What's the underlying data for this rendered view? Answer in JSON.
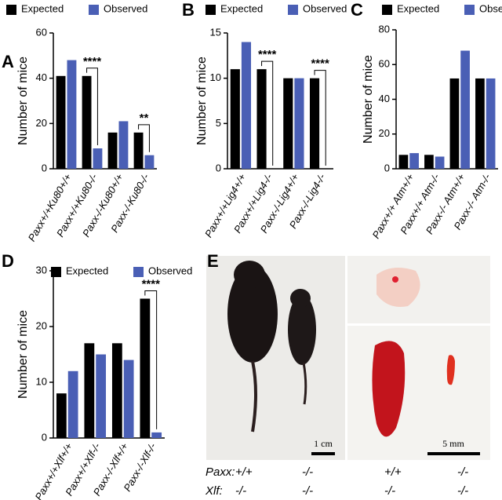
{
  "chart_data": [
    {
      "type": "bar",
      "panel": "A",
      "ylabel": "Number of mice",
      "categories": [
        "Paxx+/+Ku80+/+",
        "Paxx+/+Ku80-/-",
        "Paxx-/-Ku80+/+",
        "Paxx-/-Ku80-/-"
      ],
      "series": [
        {
          "name": "Expected",
          "color": "#000000",
          "values": [
            41,
            41,
            16,
            16
          ]
        },
        {
          "name": "Observed",
          "color": "#4a5fb5",
          "values": [
            48,
            9,
            21,
            6
          ]
        }
      ],
      "annotations": [
        null,
        "****",
        null,
        "**"
      ],
      "ylim": [
        0,
        60
      ],
      "yticks": [
        0,
        20,
        40,
        60
      ]
    },
    {
      "type": "bar",
      "panel": "B",
      "ylabel": "Number of mice",
      "categories": [
        "Paxx+/+Lig4+/+",
        "Paxx+/+Lig4-/-",
        "Paxx-/-Lig4+/+",
        "Paxx-/-Lig4-/-"
      ],
      "series": [
        {
          "name": "Expected",
          "color": "#000000",
          "values": [
            11,
            11,
            10,
            10
          ]
        },
        {
          "name": "Observed",
          "color": "#4a5fb5",
          "values": [
            14,
            0,
            10,
            0
          ]
        }
      ],
      "annotations": [
        null,
        "****",
        null,
        "****"
      ],
      "ylim": [
        0,
        15
      ],
      "yticks": [
        0,
        5,
        10,
        15
      ]
    },
    {
      "type": "bar",
      "panel": "C",
      "ylabel": "Number of mice",
      "categories": [
        "Paxx+/+ Atm+/+",
        "Paxx+/+ Atm-/-",
        "Paxx-/- Atm+/+",
        "Paxx-/- Atm-/-"
      ],
      "series": [
        {
          "name": "Expected",
          "color": "#000000",
          "values": [
            8,
            8,
            52,
            52
          ]
        },
        {
          "name": "Observed",
          "color": "#4a5fb5",
          "values": [
            9,
            7,
            68,
            52
          ]
        }
      ],
      "annotations": [
        null,
        null,
        null,
        null
      ],
      "ylim": [
        0,
        80
      ],
      "yticks": [
        0,
        20,
        40,
        60,
        80
      ]
    },
    {
      "type": "bar",
      "panel": "D",
      "ylabel": "Number of mice",
      "categories": [
        "Paxx+/+Xlf+/+",
        "Paxx+/+Xlf-/-",
        "Paxx-/-Xlf+/+",
        "Paxx-/-Xlf-/-"
      ],
      "series": [
        {
          "name": "Expected",
          "color": "#000000",
          "values": [
            8,
            17,
            17,
            25
          ]
        },
        {
          "name": "Observed",
          "color": "#4a5fb5",
          "values": [
            12,
            15,
            14,
            1
          ]
        }
      ],
      "annotations": [
        null,
        null,
        null,
        "****"
      ],
      "ylim": [
        0,
        30
      ],
      "yticks": [
        0,
        10,
        20,
        30
      ]
    }
  ],
  "panel_e": {
    "panel": "E",
    "scale_left": "1 cm",
    "scale_right": "5 mm",
    "rows": [
      [
        "Paxx:",
        "+/+",
        "-/-",
        "+/+",
        "-/-"
      ],
      [
        "Xlf:",
        "-/-",
        "-/-",
        "-/-",
        "-/-"
      ]
    ]
  }
}
